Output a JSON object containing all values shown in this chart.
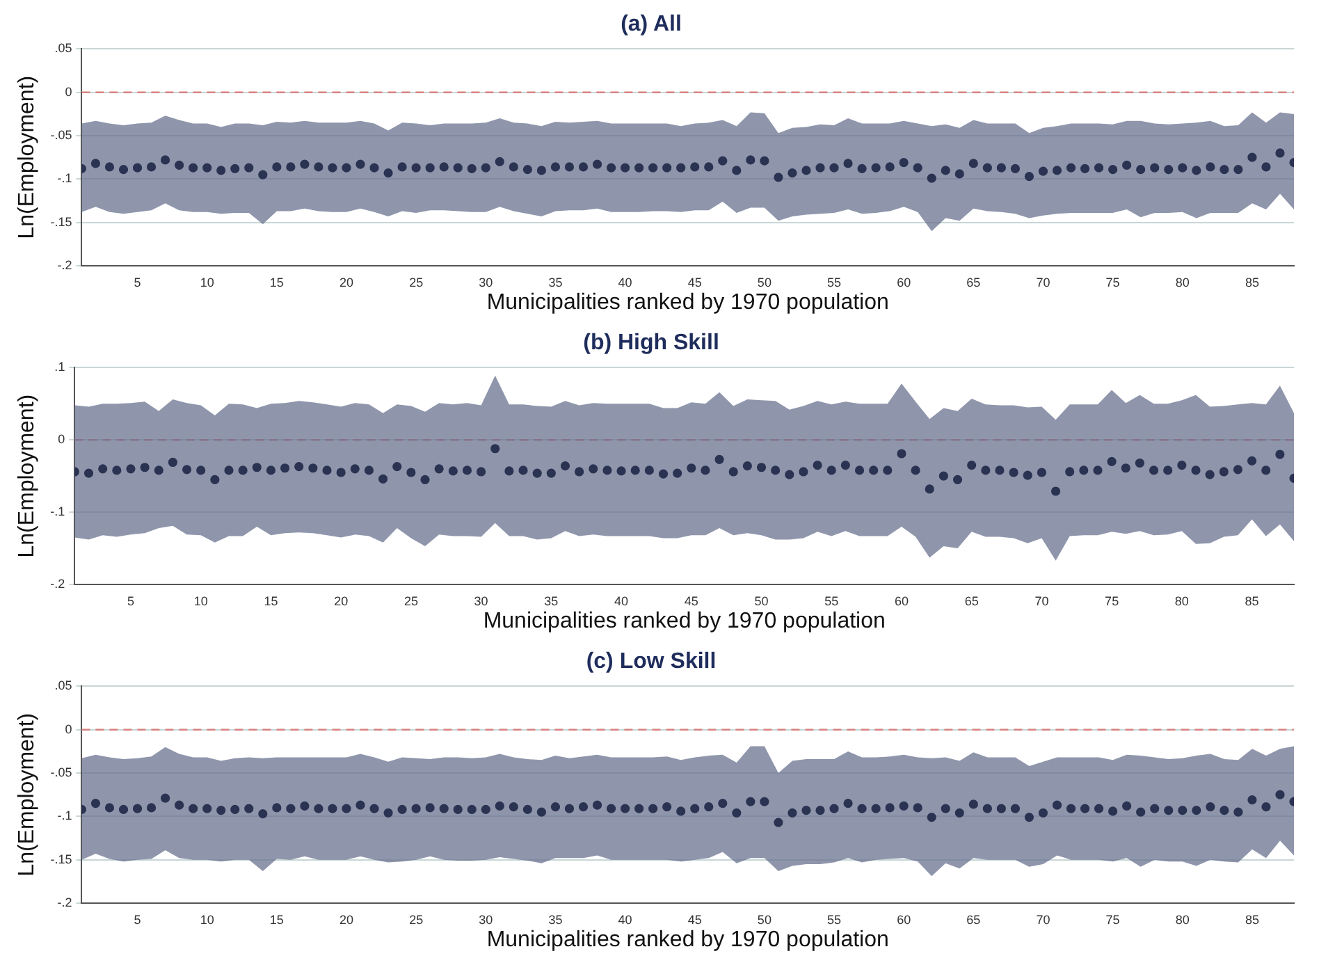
{
  "chart_data": [
    {
      "type": "scatter",
      "title": "(a) All",
      "xlabel": "Municipalities ranked by 1970 population",
      "ylabel": "Ln(Employment)",
      "marker": "circle",
      "grid": "y",
      "xlim": [
        1,
        88
      ],
      "xticks": [
        5,
        10,
        15,
        20,
        25,
        30,
        35,
        40,
        45,
        50,
        55,
        60,
        65,
        70,
        75,
        80,
        85
      ],
      "ylim": [
        -0.2,
        0.05
      ],
      "yticks": [
        {
          "value": -0.2,
          "label": "-.2"
        },
        {
          "value": -0.15,
          "label": "-.15"
        },
        {
          "value": -0.1,
          "label": "-.1"
        },
        {
          "value": -0.05,
          "label": "-.05"
        },
        {
          "value": 0,
          "label": "0"
        },
        {
          "value": 0.05,
          "label": ".05"
        }
      ],
      "ref_lines": [
        {
          "axis": "y",
          "value": 0,
          "label": null,
          "color": "#d98080",
          "line_style": "dashed"
        }
      ],
      "x": [
        1,
        2,
        3,
        4,
        5,
        6,
        7,
        8,
        9,
        10,
        11,
        12,
        13,
        14,
        15,
        16,
        17,
        18,
        19,
        20,
        21,
        22,
        23,
        24,
        25,
        26,
        27,
        28,
        29,
        30,
        31,
        32,
        33,
        34,
        35,
        36,
        37,
        38,
        39,
        40,
        41,
        42,
        43,
        44,
        45,
        46,
        47,
        48,
        49,
        50,
        51,
        52,
        53,
        54,
        55,
        56,
        57,
        58,
        59,
        60,
        61,
        62,
        63,
        64,
        65,
        66,
        67,
        68,
        69,
        70,
        71,
        72,
        73,
        74,
        75,
        76,
        77,
        78,
        79,
        80,
        81,
        82,
        83,
        84,
        85,
        86,
        87,
        88
      ],
      "series": [
        {
          "color": "#2b3352",
          "values": [
            -0.088,
            -0.082,
            -0.086,
            -0.089,
            -0.087,
            -0.086,
            -0.078,
            -0.084,
            -0.087,
            -0.087,
            -0.09,
            -0.088,
            -0.087,
            -0.095,
            -0.086,
            -0.086,
            -0.083,
            -0.086,
            -0.087,
            -0.087,
            -0.083,
            -0.087,
            -0.093,
            -0.086,
            -0.087,
            -0.087,
            -0.086,
            -0.087,
            -0.088,
            -0.087,
            -0.08,
            -0.086,
            -0.089,
            -0.09,
            -0.086,
            -0.086,
            -0.086,
            -0.083,
            -0.087,
            -0.087,
            -0.087,
            -0.087,
            -0.087,
            -0.087,
            -0.086,
            -0.086,
            -0.079,
            -0.09,
            -0.078,
            -0.079,
            -0.098,
            -0.093,
            -0.09,
            -0.087,
            -0.087,
            -0.082,
            -0.088,
            -0.087,
            -0.086,
            -0.081,
            -0.087,
            -0.099,
            -0.09,
            -0.094,
            -0.082,
            -0.087,
            -0.087,
            -0.088,
            -0.097,
            -0.091,
            -0.09,
            -0.087,
            -0.088,
            -0.087,
            -0.089,
            -0.084,
            -0.089,
            -0.087,
            -0.089,
            -0.087,
            -0.09,
            -0.086,
            -0.089,
            -0.089,
            -0.075,
            -0.086,
            -0.07,
            -0.081
          ],
          "upper": [
            -0.036,
            -0.033,
            -0.036,
            -0.038,
            -0.036,
            -0.035,
            -0.027,
            -0.032,
            -0.036,
            -0.036,
            -0.04,
            -0.036,
            -0.036,
            -0.038,
            -0.034,
            -0.035,
            -0.033,
            -0.035,
            -0.035,
            -0.035,
            -0.033,
            -0.036,
            -0.044,
            -0.035,
            -0.036,
            -0.038,
            -0.036,
            -0.036,
            -0.036,
            -0.035,
            -0.03,
            -0.035,
            -0.036,
            -0.039,
            -0.034,
            -0.035,
            -0.034,
            -0.033,
            -0.036,
            -0.036,
            -0.036,
            -0.036,
            -0.036,
            -0.039,
            -0.036,
            -0.035,
            -0.032,
            -0.039,
            -0.023,
            -0.024,
            -0.047,
            -0.041,
            -0.04,
            -0.037,
            -0.038,
            -0.03,
            -0.036,
            -0.036,
            -0.036,
            -0.033,
            -0.036,
            -0.039,
            -0.037,
            -0.041,
            -0.032,
            -0.036,
            -0.036,
            -0.036,
            -0.047,
            -0.041,
            -0.039,
            -0.036,
            -0.036,
            -0.036,
            -0.037,
            -0.033,
            -0.033,
            -0.036,
            -0.037,
            -0.036,
            -0.035,
            -0.033,
            -0.039,
            -0.038,
            -0.023,
            -0.035,
            -0.023,
            -0.025
          ],
          "lower": [
            -0.138,
            -0.132,
            -0.138,
            -0.14,
            -0.138,
            -0.136,
            -0.128,
            -0.136,
            -0.138,
            -0.138,
            -0.14,
            -0.139,
            -0.139,
            -0.152,
            -0.137,
            -0.137,
            -0.134,
            -0.137,
            -0.138,
            -0.138,
            -0.134,
            -0.138,
            -0.143,
            -0.137,
            -0.139,
            -0.136,
            -0.136,
            -0.137,
            -0.138,
            -0.138,
            -0.132,
            -0.137,
            -0.14,
            -0.143,
            -0.137,
            -0.136,
            -0.136,
            -0.134,
            -0.138,
            -0.138,
            -0.138,
            -0.137,
            -0.137,
            -0.138,
            -0.136,
            -0.136,
            -0.126,
            -0.139,
            -0.133,
            -0.133,
            -0.148,
            -0.143,
            -0.141,
            -0.14,
            -0.139,
            -0.135,
            -0.14,
            -0.139,
            -0.137,
            -0.132,
            -0.138,
            -0.16,
            -0.145,
            -0.148,
            -0.134,
            -0.137,
            -0.138,
            -0.14,
            -0.145,
            -0.142,
            -0.14,
            -0.139,
            -0.139,
            -0.139,
            -0.139,
            -0.135,
            -0.144,
            -0.139,
            -0.139,
            -0.138,
            -0.145,
            -0.139,
            -0.139,
            -0.139,
            -0.128,
            -0.135,
            -0.117,
            -0.135
          ]
        }
      ]
    },
    {
      "type": "scatter",
      "title": "(b) High Skill",
      "xlabel": "Municipalities ranked by 1970 population",
      "ylabel": "Ln(Employment)",
      "marker": "circle",
      "grid": "y",
      "xlim": [
        1,
        88
      ],
      "xticks": [
        5,
        10,
        15,
        20,
        25,
        30,
        35,
        40,
        45,
        50,
        55,
        60,
        65,
        70,
        75,
        80,
        85
      ],
      "ylim": [
        -0.2,
        0.1
      ],
      "yticks": [
        {
          "value": -0.2,
          "label": "-.2"
        },
        {
          "value": -0.1,
          "label": "-.1"
        },
        {
          "value": 0,
          "label": "0"
        },
        {
          "value": 0.1,
          "label": ".1"
        }
      ],
      "ref_lines": [
        {
          "axis": "y",
          "value": 0,
          "label": null,
          "color": "#d98080",
          "line_style": "dashed"
        }
      ],
      "x": [
        1,
        2,
        3,
        4,
        5,
        6,
        7,
        8,
        9,
        10,
        11,
        12,
        13,
        14,
        15,
        16,
        17,
        18,
        19,
        20,
        21,
        22,
        23,
        24,
        25,
        26,
        27,
        28,
        29,
        30,
        31,
        32,
        33,
        34,
        35,
        36,
        37,
        38,
        39,
        40,
        41,
        42,
        43,
        44,
        45,
        46,
        47,
        48,
        49,
        50,
        51,
        52,
        53,
        54,
        55,
        56,
        57,
        58,
        59,
        60,
        61,
        62,
        63,
        64,
        65,
        66,
        67,
        68,
        69,
        70,
        71,
        72,
        73,
        74,
        75,
        76,
        77,
        78,
        79,
        80,
        81,
        82,
        83,
        84,
        85,
        86,
        87,
        88
      ],
      "series": [
        {
          "color": "#2b3352",
          "values": [
            -0.044,
            -0.046,
            -0.04,
            -0.042,
            -0.04,
            -0.038,
            -0.042,
            -0.031,
            -0.041,
            -0.042,
            -0.055,
            -0.042,
            -0.042,
            -0.038,
            -0.042,
            -0.039,
            -0.037,
            -0.039,
            -0.042,
            -0.045,
            -0.04,
            -0.042,
            -0.054,
            -0.037,
            -0.045,
            -0.055,
            -0.04,
            -0.043,
            -0.042,
            -0.044,
            -0.012,
            -0.043,
            -0.042,
            -0.046,
            -0.046,
            -0.036,
            -0.044,
            -0.04,
            -0.042,
            -0.043,
            -0.042,
            -0.042,
            -0.047,
            -0.046,
            -0.039,
            -0.042,
            -0.027,
            -0.044,
            -0.036,
            -0.038,
            -0.042,
            -0.048,
            -0.044,
            -0.035,
            -0.042,
            -0.035,
            -0.042,
            -0.042,
            -0.042,
            -0.019,
            -0.042,
            -0.068,
            -0.05,
            -0.055,
            -0.035,
            -0.042,
            -0.042,
            -0.045,
            -0.049,
            -0.045,
            -0.071,
            -0.044,
            -0.042,
            -0.042,
            -0.03,
            -0.039,
            -0.032,
            -0.042,
            -0.042,
            -0.035,
            -0.042,
            -0.048,
            -0.044,
            -0.041,
            -0.029,
            -0.042,
            -0.02,
            -0.053
          ],
          "upper": [
            0.048,
            0.046,
            0.05,
            0.05,
            0.051,
            0.053,
            0.04,
            0.056,
            0.051,
            0.048,
            0.034,
            0.05,
            0.049,
            0.044,
            0.05,
            0.051,
            0.054,
            0.052,
            0.049,
            0.046,
            0.051,
            0.049,
            0.037,
            0.049,
            0.047,
            0.039,
            0.051,
            0.049,
            0.051,
            0.048,
            0.089,
            0.049,
            0.049,
            0.047,
            0.046,
            0.054,
            0.048,
            0.051,
            0.05,
            0.05,
            0.05,
            0.05,
            0.044,
            0.044,
            0.052,
            0.05,
            0.066,
            0.047,
            0.056,
            0.055,
            0.054,
            0.042,
            0.047,
            0.054,
            0.049,
            0.053,
            0.05,
            0.05,
            0.05,
            0.078,
            0.053,
            0.029,
            0.044,
            0.04,
            0.057,
            0.049,
            0.048,
            0.048,
            0.045,
            0.046,
            0.028,
            0.049,
            0.049,
            0.049,
            0.069,
            0.051,
            0.062,
            0.05,
            0.05,
            0.055,
            0.062,
            0.046,
            0.047,
            0.049,
            0.051,
            0.049,
            0.075,
            0.037
          ],
          "lower": [
            -0.135,
            -0.138,
            -0.132,
            -0.134,
            -0.131,
            -0.129,
            -0.122,
            -0.119,
            -0.131,
            -0.132,
            -0.142,
            -0.133,
            -0.133,
            -0.12,
            -0.132,
            -0.129,
            -0.128,
            -0.129,
            -0.132,
            -0.135,
            -0.131,
            -0.133,
            -0.142,
            -0.122,
            -0.136,
            -0.147,
            -0.131,
            -0.133,
            -0.133,
            -0.134,
            -0.115,
            -0.133,
            -0.133,
            -0.138,
            -0.136,
            -0.126,
            -0.133,
            -0.131,
            -0.133,
            -0.133,
            -0.133,
            -0.133,
            -0.136,
            -0.136,
            -0.132,
            -0.132,
            -0.122,
            -0.132,
            -0.129,
            -0.132,
            -0.138,
            -0.138,
            -0.136,
            -0.127,
            -0.133,
            -0.126,
            -0.133,
            -0.133,
            -0.133,
            -0.12,
            -0.134,
            -0.163,
            -0.147,
            -0.15,
            -0.127,
            -0.134,
            -0.134,
            -0.136,
            -0.143,
            -0.136,
            -0.167,
            -0.133,
            -0.132,
            -0.132,
            -0.127,
            -0.13,
            -0.126,
            -0.132,
            -0.131,
            -0.126,
            -0.144,
            -0.143,
            -0.134,
            -0.132,
            -0.11,
            -0.133,
            -0.117,
            -0.14
          ]
        }
      ]
    },
    {
      "type": "scatter",
      "title": "(c) Low Skill",
      "xlabel": "Municipalities ranked by 1970 population",
      "ylabel": "Ln(Employment)",
      "marker": "circle",
      "grid": "y",
      "xlim": [
        1,
        88
      ],
      "xticks": [
        5,
        10,
        15,
        20,
        25,
        30,
        35,
        40,
        45,
        50,
        55,
        60,
        65,
        70,
        75,
        80,
        85
      ],
      "ylim": [
        -0.2,
        0.05
      ],
      "yticks": [
        {
          "value": -0.2,
          "label": "-.2"
        },
        {
          "value": -0.15,
          "label": "-.15"
        },
        {
          "value": -0.1,
          "label": "-.1"
        },
        {
          "value": -0.05,
          "label": "-.05"
        },
        {
          "value": 0,
          "label": "0"
        },
        {
          "value": 0.05,
          "label": ".05"
        }
      ],
      "ref_lines": [
        {
          "axis": "y",
          "value": 0,
          "label": null,
          "color": "#d98080",
          "line_style": "dashed"
        }
      ],
      "x": [
        1,
        2,
        3,
        4,
        5,
        6,
        7,
        8,
        9,
        10,
        11,
        12,
        13,
        14,
        15,
        16,
        17,
        18,
        19,
        20,
        21,
        22,
        23,
        24,
        25,
        26,
        27,
        28,
        29,
        30,
        31,
        32,
        33,
        34,
        35,
        36,
        37,
        38,
        39,
        40,
        41,
        42,
        43,
        44,
        45,
        46,
        47,
        48,
        49,
        50,
        51,
        52,
        53,
        54,
        55,
        56,
        57,
        58,
        59,
        60,
        61,
        62,
        63,
        64,
        65,
        66,
        67,
        68,
        69,
        70,
        71,
        72,
        73,
        74,
        75,
        76,
        77,
        78,
        79,
        80,
        81,
        82,
        83,
        84,
        85,
        86,
        87,
        88
      ],
      "series": [
        {
          "color": "#2b3352",
          "values": [
            -0.092,
            -0.085,
            -0.09,
            -0.092,
            -0.091,
            -0.09,
            -0.079,
            -0.087,
            -0.091,
            -0.091,
            -0.093,
            -0.092,
            -0.091,
            -0.097,
            -0.09,
            -0.091,
            -0.088,
            -0.091,
            -0.091,
            -0.091,
            -0.087,
            -0.091,
            -0.096,
            -0.092,
            -0.091,
            -0.09,
            -0.091,
            -0.092,
            -0.092,
            -0.092,
            -0.088,
            -0.089,
            -0.092,
            -0.095,
            -0.089,
            -0.091,
            -0.089,
            -0.087,
            -0.091,
            -0.091,
            -0.091,
            -0.091,
            -0.089,
            -0.094,
            -0.091,
            -0.089,
            -0.085,
            -0.096,
            -0.083,
            -0.083,
            -0.107,
            -0.096,
            -0.093,
            -0.093,
            -0.091,
            -0.085,
            -0.091,
            -0.091,
            -0.09,
            -0.088,
            -0.09,
            -0.101,
            -0.091,
            -0.096,
            -0.086,
            -0.091,
            -0.091,
            -0.091,
            -0.101,
            -0.096,
            -0.087,
            -0.091,
            -0.091,
            -0.091,
            -0.094,
            -0.088,
            -0.095,
            -0.091,
            -0.093,
            -0.093,
            -0.093,
            -0.089,
            -0.093,
            -0.095,
            -0.081,
            -0.089,
            -0.075,
            -0.083
          ],
          "upper": [
            -0.033,
            -0.029,
            -0.032,
            -0.034,
            -0.033,
            -0.031,
            -0.02,
            -0.028,
            -0.032,
            -0.032,
            -0.036,
            -0.033,
            -0.032,
            -0.033,
            -0.032,
            -0.032,
            -0.032,
            -0.032,
            -0.032,
            -0.032,
            -0.028,
            -0.032,
            -0.037,
            -0.032,
            -0.033,
            -0.034,
            -0.032,
            -0.032,
            -0.033,
            -0.032,
            -0.028,
            -0.032,
            -0.034,
            -0.035,
            -0.03,
            -0.033,
            -0.031,
            -0.029,
            -0.032,
            -0.032,
            -0.032,
            -0.032,
            -0.031,
            -0.035,
            -0.032,
            -0.03,
            -0.029,
            -0.038,
            -0.019,
            -0.019,
            -0.05,
            -0.036,
            -0.034,
            -0.034,
            -0.034,
            -0.025,
            -0.032,
            -0.032,
            -0.031,
            -0.029,
            -0.032,
            -0.033,
            -0.032,
            -0.036,
            -0.026,
            -0.032,
            -0.032,
            -0.032,
            -0.042,
            -0.037,
            -0.032,
            -0.032,
            -0.032,
            -0.032,
            -0.035,
            -0.029,
            -0.03,
            -0.032,
            -0.034,
            -0.033,
            -0.03,
            -0.028,
            -0.034,
            -0.035,
            -0.022,
            -0.03,
            -0.022,
            -0.019
          ],
          "lower": [
            -0.15,
            -0.143,
            -0.149,
            -0.152,
            -0.15,
            -0.149,
            -0.139,
            -0.148,
            -0.15,
            -0.15,
            -0.152,
            -0.15,
            -0.15,
            -0.163,
            -0.149,
            -0.15,
            -0.146,
            -0.15,
            -0.15,
            -0.15,
            -0.146,
            -0.15,
            -0.153,
            -0.152,
            -0.15,
            -0.146,
            -0.15,
            -0.151,
            -0.151,
            -0.15,
            -0.147,
            -0.149,
            -0.151,
            -0.154,
            -0.148,
            -0.148,
            -0.148,
            -0.145,
            -0.15,
            -0.15,
            -0.15,
            -0.15,
            -0.15,
            -0.152,
            -0.15,
            -0.148,
            -0.141,
            -0.154,
            -0.148,
            -0.148,
            -0.163,
            -0.157,
            -0.155,
            -0.155,
            -0.153,
            -0.148,
            -0.153,
            -0.15,
            -0.149,
            -0.148,
            -0.152,
            -0.169,
            -0.154,
            -0.16,
            -0.148,
            -0.15,
            -0.15,
            -0.15,
            -0.158,
            -0.155,
            -0.145,
            -0.15,
            -0.15,
            -0.15,
            -0.152,
            -0.148,
            -0.158,
            -0.15,
            -0.152,
            -0.152,
            -0.157,
            -0.15,
            -0.152,
            -0.153,
            -0.138,
            -0.148,
            -0.128,
            -0.145
          ]
        }
      ]
    }
  ]
}
